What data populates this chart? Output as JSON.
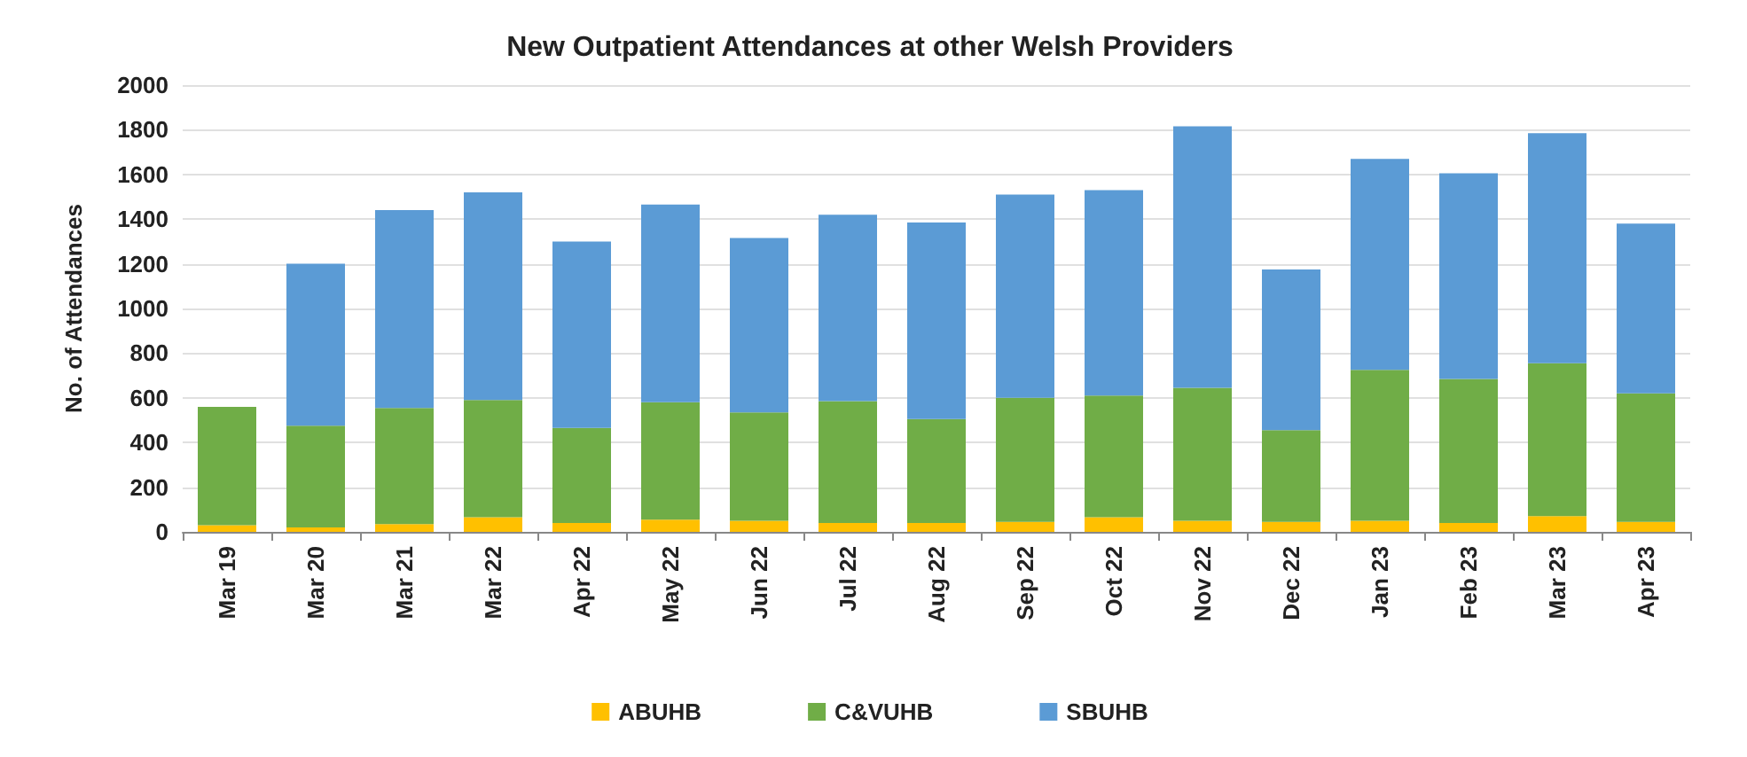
{
  "chart_data": {
    "type": "bar",
    "title": "New Outpatient Attendances at other Welsh Providers",
    "ylabel": "No. of Attendances",
    "categories": [
      "Mar 19",
      "Mar 20",
      "Mar 21",
      "Mar 22",
      "Apr 22",
      "May 22",
      "Jun 22",
      "Jul 22",
      "Aug 22",
      "Sep 22",
      "Oct 22",
      "Nov 22",
      "Dec 22",
      "Jan 23",
      "Feb 23",
      "Mar 23",
      "Apr 23"
    ],
    "series": [
      {
        "name": "ABUHB",
        "color": "#ffc000",
        "values": [
          30,
          20,
          35,
          65,
          40,
          55,
          50,
          40,
          40,
          45,
          65,
          50,
          45,
          50,
          40,
          70,
          45
        ]
      },
      {
        "name": "C&VUHB",
        "color": "#70ad47",
        "values": [
          530,
          455,
          520,
          525,
          425,
          525,
          485,
          545,
          465,
          555,
          545,
          595,
          410,
          675,
          645,
          685,
          575
        ]
      },
      {
        "name": "SBUHB",
        "color": "#5b9bd5",
        "values": [
          0,
          725,
          885,
          930,
          835,
          885,
          780,
          835,
          880,
          910,
          920,
          1170,
          720,
          945,
          920,
          1030,
          760
        ]
      }
    ],
    "stacked": true,
    "ylim": [
      0,
      2000
    ],
    "yticks": [
      0,
      200,
      400,
      600,
      800,
      1000,
      1200,
      1400,
      1600,
      1800,
      2000
    ],
    "grid": "y",
    "legend": "bottom"
  }
}
